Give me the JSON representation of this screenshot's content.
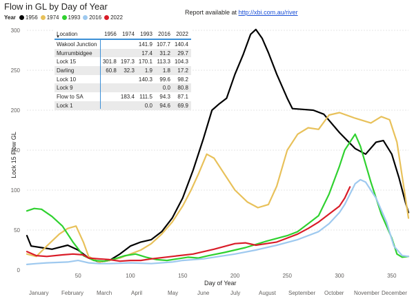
{
  "title": "Flow in GL by Day of Year",
  "report": {
    "prefix": "Report available at ",
    "link": "http://xbi.com.au/river"
  },
  "legend": {
    "label": "Year",
    "items": [
      {
        "name": "1956",
        "color": "#000000"
      },
      {
        "name": "1974",
        "color": "#e8c15a"
      },
      {
        "name": "1993",
        "color": "#2fd12f"
      },
      {
        "name": "2016",
        "color": "#9ec9ef"
      },
      {
        "name": "2022",
        "color": "#d91c28"
      }
    ]
  },
  "table": {
    "columns": [
      "Location",
      "1956",
      "1974",
      "1993",
      "2016",
      "2022"
    ],
    "rows": [
      [
        "Wakool Junction",
        "",
        "",
        "141.9",
        "107.7",
        "140.4"
      ],
      [
        "Murrumbidgee",
        "",
        "",
        "17.4",
        "31.2",
        "29.7"
      ],
      [
        "Lock 15",
        "301.8",
        "197.3",
        "170.1",
        "113.3",
        "104.3"
      ],
      [
        "Darling",
        "60.8",
        "32.3",
        "1.9",
        "1.8",
        "17.2"
      ],
      [
        "Lock 10",
        "",
        "",
        "140.3",
        "99.6",
        "98.2"
      ],
      [
        "Lock 9",
        "",
        "",
        "",
        "0.0",
        "80.8"
      ],
      [
        "Flow to SA",
        "",
        "183.4",
        "111.5",
        "94.3",
        "87.1"
      ],
      [
        "Lock 1",
        "",
        "",
        "0.0",
        "94.6",
        "69.9"
      ]
    ]
  },
  "chart_data": {
    "type": "line",
    "xlabel": "Day of Year",
    "ylabel": "Lock 15 Flow GL",
    "xlim": [
      1,
      366
    ],
    "ylim": [
      0,
      300
    ],
    "x_ticks": [
      50,
      100,
      150,
      200,
      250,
      300,
      350
    ],
    "y_ticks": [
      0,
      50,
      100,
      150,
      200,
      250,
      300
    ],
    "months": [
      "January",
      "February",
      "March",
      "April",
      "May",
      "June",
      "July",
      "August",
      "September",
      "October",
      "November",
      "December"
    ],
    "series": [
      {
        "name": "1956",
        "color": "#000000",
        "points": [
          [
            1,
            43
          ],
          [
            5,
            30
          ],
          [
            15,
            28
          ],
          [
            25,
            26
          ],
          [
            40,
            31
          ],
          [
            50,
            25
          ],
          [
            60,
            15
          ],
          [
            70,
            10
          ],
          [
            80,
            12
          ],
          [
            90,
            20
          ],
          [
            100,
            30
          ],
          [
            110,
            35
          ],
          [
            120,
            38
          ],
          [
            130,
            48
          ],
          [
            140,
            65
          ],
          [
            150,
            90
          ],
          [
            160,
            125
          ],
          [
            170,
            165
          ],
          [
            178,
            200
          ],
          [
            185,
            208
          ],
          [
            192,
            215
          ],
          [
            200,
            245
          ],
          [
            208,
            270
          ],
          [
            215,
            295
          ],
          [
            220,
            301
          ],
          [
            226,
            290
          ],
          [
            232,
            272
          ],
          [
            240,
            245
          ],
          [
            250,
            215
          ],
          [
            255,
            202
          ],
          [
            265,
            201
          ],
          [
            275,
            200
          ],
          [
            285,
            195
          ],
          [
            300,
            172
          ],
          [
            315,
            152
          ],
          [
            325,
            145
          ],
          [
            335,
            160
          ],
          [
            342,
            162
          ],
          [
            350,
            145
          ],
          [
            357,
            115
          ],
          [
            363,
            85
          ],
          [
            366,
            72
          ]
        ]
      },
      {
        "name": "1974",
        "color": "#e8c15a",
        "points": [
          [
            1,
            20
          ],
          [
            10,
            17
          ],
          [
            20,
            30
          ],
          [
            32,
            45
          ],
          [
            40,
            52
          ],
          [
            48,
            55
          ],
          [
            55,
            35
          ],
          [
            60,
            17
          ],
          [
            70,
            10
          ],
          [
            80,
            12
          ],
          [
            90,
            15
          ],
          [
            100,
            20
          ],
          [
            110,
            25
          ],
          [
            120,
            33
          ],
          [
            130,
            45
          ],
          [
            140,
            60
          ],
          [
            150,
            80
          ],
          [
            158,
            100
          ],
          [
            165,
            120
          ],
          [
            173,
            145
          ],
          [
            180,
            140
          ],
          [
            190,
            120
          ],
          [
            200,
            100
          ],
          [
            212,
            85
          ],
          [
            222,
            78
          ],
          [
            232,
            82
          ],
          [
            240,
            105
          ],
          [
            250,
            150
          ],
          [
            260,
            170
          ],
          [
            270,
            178
          ],
          [
            280,
            176
          ],
          [
            290,
            194
          ],
          [
            300,
            197
          ],
          [
            315,
            190
          ],
          [
            330,
            184
          ],
          [
            340,
            192
          ],
          [
            348,
            188
          ],
          [
            355,
            160
          ],
          [
            362,
            100
          ],
          [
            366,
            65
          ]
        ]
      },
      {
        "name": "1993",
        "color": "#2fd12f",
        "points": [
          [
            1,
            74
          ],
          [
            8,
            77
          ],
          [
            15,
            76
          ],
          [
            25,
            67
          ],
          [
            35,
            55
          ],
          [
            45,
            35
          ],
          [
            55,
            18
          ],
          [
            65,
            12
          ],
          [
            75,
            11
          ],
          [
            85,
            14
          ],
          [
            95,
            18
          ],
          [
            105,
            20
          ],
          [
            115,
            16
          ],
          [
            125,
            13
          ],
          [
            135,
            12
          ],
          [
            145,
            14
          ],
          [
            155,
            16
          ],
          [
            165,
            15
          ],
          [
            175,
            18
          ],
          [
            190,
            22
          ],
          [
            210,
            28
          ],
          [
            230,
            36
          ],
          [
            250,
            43
          ],
          [
            260,
            48
          ],
          [
            270,
            58
          ],
          [
            280,
            68
          ],
          [
            290,
            95
          ],
          [
            300,
            130
          ],
          [
            305,
            150
          ],
          [
            310,
            160
          ],
          [
            315,
            170
          ],
          [
            320,
            155
          ],
          [
            330,
            110
          ],
          [
            340,
            70
          ],
          [
            350,
            40
          ],
          [
            355,
            20
          ],
          [
            360,
            16
          ],
          [
            366,
            17
          ]
        ]
      },
      {
        "name": "2016",
        "color": "#9ec9ef",
        "points": [
          [
            1,
            7
          ],
          [
            10,
            8
          ],
          [
            20,
            9
          ],
          [
            40,
            10
          ],
          [
            50,
            12
          ],
          [
            60,
            9
          ],
          [
            70,
            8
          ],
          [
            80,
            8
          ],
          [
            100,
            9
          ],
          [
            120,
            8
          ],
          [
            140,
            10
          ],
          [
            150,
            12
          ],
          [
            170,
            14
          ],
          [
            180,
            16
          ],
          [
            200,
            20
          ],
          [
            220,
            25
          ],
          [
            240,
            31
          ],
          [
            260,
            38
          ],
          [
            280,
            48
          ],
          [
            290,
            58
          ],
          [
            300,
            72
          ],
          [
            305,
            82
          ],
          [
            310,
            95
          ],
          [
            315,
            108
          ],
          [
            320,
            113
          ],
          [
            325,
            110
          ],
          [
            335,
            90
          ],
          [
            345,
            60
          ],
          [
            352,
            30
          ],
          [
            360,
            18
          ],
          [
            366,
            17
          ]
        ]
      },
      {
        "name": "2022",
        "color": "#d91c28",
        "points": [
          [
            1,
            23
          ],
          [
            10,
            18
          ],
          [
            20,
            17
          ],
          [
            35,
            19
          ],
          [
            45,
            20
          ],
          [
            55,
            19
          ],
          [
            60,
            15
          ],
          [
            70,
            14
          ],
          [
            80,
            13
          ],
          [
            90,
            11
          ],
          [
            100,
            12
          ],
          [
            110,
            12
          ],
          [
            120,
            14
          ],
          [
            140,
            17
          ],
          [
            160,
            20
          ],
          [
            180,
            26
          ],
          [
            200,
            33
          ],
          [
            210,
            34
          ],
          [
            220,
            31
          ],
          [
            230,
            33
          ],
          [
            240,
            35
          ],
          [
            250,
            40
          ],
          [
            260,
            45
          ],
          [
            270,
            52
          ],
          [
            280,
            60
          ],
          [
            290,
            70
          ],
          [
            300,
            80
          ],
          [
            305,
            90
          ],
          [
            310,
            104
          ]
        ]
      }
    ]
  }
}
